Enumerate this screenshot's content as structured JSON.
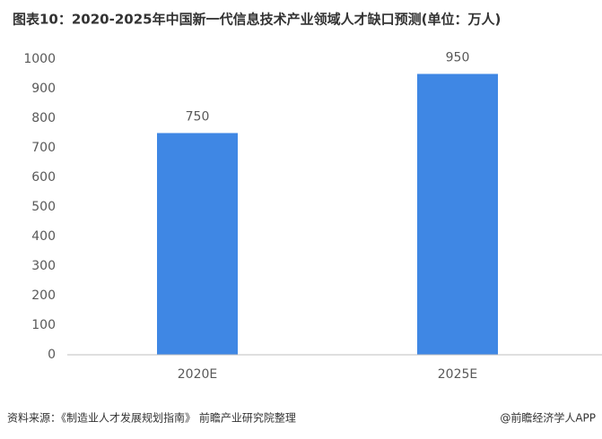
{
  "chart_data": {
    "type": "bar",
    "title": "图表10：2020-2025年中国新一代信息技术产业领域人才缺口预测(单位：万人)",
    "categories": [
      "2020E",
      "2025E"
    ],
    "values": [
      750,
      950
    ],
    "color": "#3f87e4",
    "ylim": [
      0,
      1000
    ],
    "yticks": [
      0,
      100,
      200,
      300,
      400,
      500,
      600,
      700,
      800,
      900,
      1000
    ],
    "grid": false,
    "source": "资料来源：《制造业人才发展规划指南》 前瞻产业研究院整理",
    "credit": "@前瞻经济学人APP"
  }
}
